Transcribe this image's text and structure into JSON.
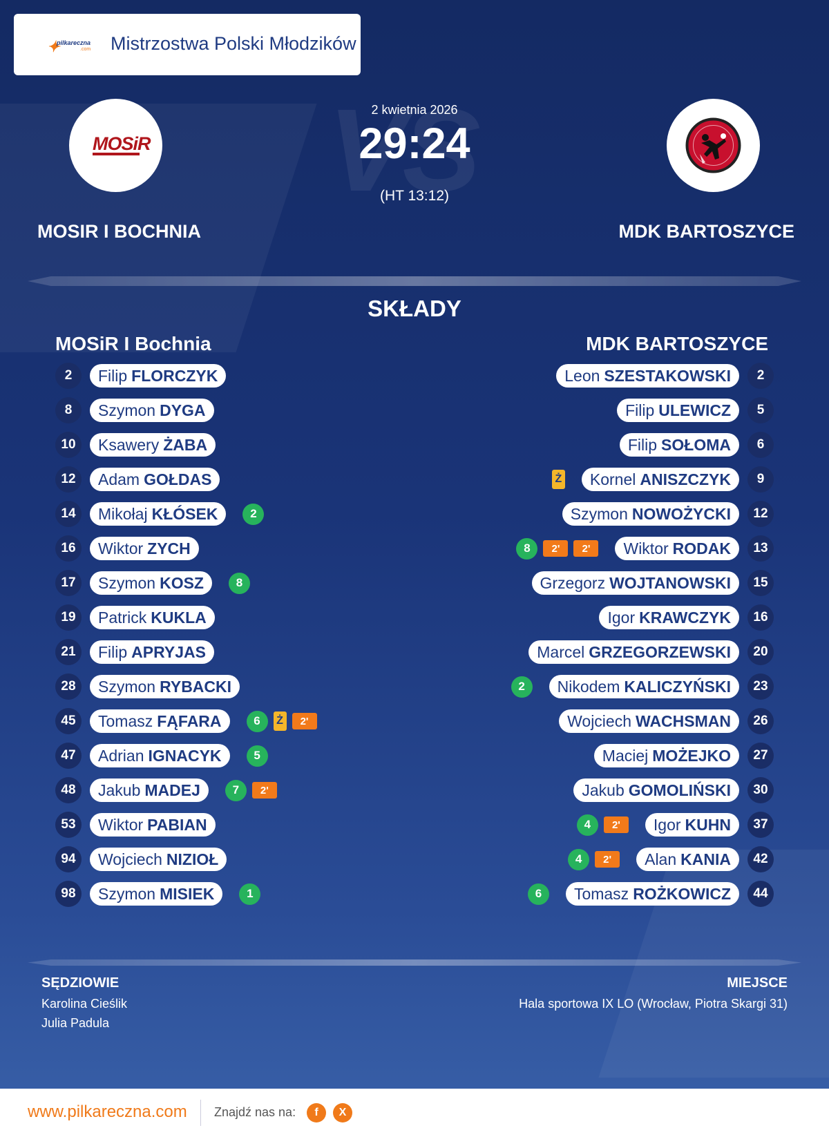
{
  "header": {
    "site_logo_text": "pilkareczna",
    "site_logo_suffix": ".com",
    "competition": "Mistrzostwa Polski Młodzików"
  },
  "match": {
    "date": "2 kwietnia 2026",
    "score": "29:24",
    "halftime": "(HT 13:12)",
    "vs_text": "VS",
    "home_name": "MOSIR I BOCHNIA",
    "away_name": "MDK BARTOSZYCE",
    "home_logo_text": "MOSiR"
  },
  "lineups": {
    "title": "SKŁADY",
    "home_title": "MOSiR I Bochnia",
    "away_title": "MDK BARTOSZYCE",
    "home": [
      {
        "num": "2",
        "first": "Filip",
        "last": "FLORCZYK",
        "events": []
      },
      {
        "num": "8",
        "first": "Szymon",
        "last": "DYGA",
        "events": []
      },
      {
        "num": "10",
        "first": "Ksawery",
        "last": "ŻABA",
        "events": []
      },
      {
        "num": "12",
        "first": "Adam",
        "last": "GOŁDAS",
        "events": []
      },
      {
        "num": "14",
        "first": "Mikołaj",
        "last": "KŁÓSEK",
        "events": [
          {
            "type": "goal",
            "text": "2"
          }
        ]
      },
      {
        "num": "16",
        "first": "Wiktor",
        "last": "ZYCH",
        "events": []
      },
      {
        "num": "17",
        "first": "Szymon",
        "last": "KOSZ",
        "events": [
          {
            "type": "goal",
            "text": "8"
          }
        ]
      },
      {
        "num": "19",
        "first": "Patrick",
        "last": "KUKLA",
        "events": []
      },
      {
        "num": "21",
        "first": "Filip",
        "last": "APRYJAS",
        "events": []
      },
      {
        "num": "28",
        "first": "Szymon",
        "last": "RYBACKI",
        "events": []
      },
      {
        "num": "45",
        "first": "Tomasz",
        "last": "FĄFARA",
        "events": [
          {
            "type": "goal",
            "text": "6"
          },
          {
            "type": "yellow",
            "text": "Ż"
          },
          {
            "type": "susp",
            "text": "2'"
          }
        ]
      },
      {
        "num": "47",
        "first": "Adrian",
        "last": "IGNACYK",
        "events": [
          {
            "type": "goal",
            "text": "5"
          }
        ]
      },
      {
        "num": "48",
        "first": "Jakub",
        "last": "MADEJ",
        "events": [
          {
            "type": "goal",
            "text": "7"
          },
          {
            "type": "susp",
            "text": "2'"
          }
        ]
      },
      {
        "num": "53",
        "first": "Wiktor",
        "last": "PABIAN",
        "events": []
      },
      {
        "num": "94",
        "first": "Wojciech",
        "last": "NIZIOŁ",
        "events": []
      },
      {
        "num": "98",
        "first": "Szymon",
        "last": "MISIEK",
        "events": [
          {
            "type": "goal",
            "text": "1"
          }
        ]
      }
    ],
    "away": [
      {
        "num": "2",
        "first": "Leon",
        "last": "SZESTAKOWSKI",
        "events": []
      },
      {
        "num": "5",
        "first": "Filip",
        "last": "ULEWICZ",
        "events": []
      },
      {
        "num": "6",
        "first": "Filip",
        "last": "SOŁOMA",
        "events": []
      },
      {
        "num": "9",
        "first": "Kornel",
        "last": "ANISZCZYK",
        "events": [
          {
            "type": "yellow",
            "text": "Ż"
          }
        ]
      },
      {
        "num": "12",
        "first": "Szymon",
        "last": "NOWOŻYCKI",
        "events": []
      },
      {
        "num": "13",
        "first": "Wiktor",
        "last": "RODAK",
        "events": [
          {
            "type": "goal",
            "text": "8"
          },
          {
            "type": "susp",
            "text": "2'"
          },
          {
            "type": "susp",
            "text": "2'"
          }
        ]
      },
      {
        "num": "15",
        "first": "Grzegorz",
        "last": "WOJTANOWSKI",
        "events": []
      },
      {
        "num": "16",
        "first": "Igor",
        "last": "KRAWCZYK",
        "events": []
      },
      {
        "num": "20",
        "first": "Marcel",
        "last": "GRZEGORZEWSKI",
        "events": []
      },
      {
        "num": "23",
        "first": "Nikodem",
        "last": "KALICZYŃSKI",
        "events": [
          {
            "type": "goal",
            "text": "2"
          }
        ]
      },
      {
        "num": "26",
        "first": "Wojciech",
        "last": "WACHSMAN",
        "events": []
      },
      {
        "num": "27",
        "first": "Maciej",
        "last": "MOŻEJKO",
        "events": []
      },
      {
        "num": "30",
        "first": "Jakub",
        "last": "GOMOLIŃSKI",
        "events": []
      },
      {
        "num": "37",
        "first": "Igor",
        "last": "KUHN",
        "events": [
          {
            "type": "goal",
            "text": "4"
          },
          {
            "type": "susp",
            "text": "2'"
          }
        ]
      },
      {
        "num": "42",
        "first": "Alan",
        "last": "KANIA",
        "events": [
          {
            "type": "goal",
            "text": "4"
          },
          {
            "type": "susp",
            "text": "2'"
          }
        ]
      },
      {
        "num": "44",
        "first": "Tomasz",
        "last": "ROŻKOWICZ",
        "events": [
          {
            "type": "goal",
            "text": "6"
          }
        ]
      }
    ]
  },
  "officials": {
    "referees_title": "SĘDZIOWIE",
    "referees": [
      "Karolina Cieślik",
      "Julia Padula"
    ],
    "venue_title": "MIEJSCE",
    "venue": "Hala sportowa IX LO (Wrocław, Piotra Skargi 31)"
  },
  "footer": {
    "url": "www.pilkareczna.com",
    "find_us": "Znajdź nas na:",
    "social": [
      {
        "icon": "facebook-icon",
        "glyph": "f"
      },
      {
        "icon": "x-icon",
        "glyph": "X"
      }
    ]
  },
  "colors": {
    "background": "#1a3478",
    "accent": "#f07a1a",
    "goal": "#27b35c",
    "yellow_card": "#f4b62a",
    "suspension": "#f27a1a",
    "number_badge": "#1a2d66",
    "text_dark": "#1f3b82"
  }
}
